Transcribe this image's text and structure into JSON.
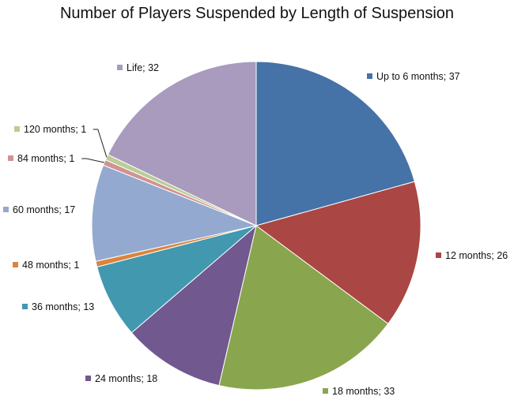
{
  "chart_data": {
    "type": "pie",
    "title": "Number of Players Suspended by Length of Suspension",
    "slices": [
      {
        "label": "Up to 6 months",
        "value": 37,
        "color": "#4572A7"
      },
      {
        "label": "12 months",
        "value": 26,
        "color": "#AA4643"
      },
      {
        "label": "18 months",
        "value": 33,
        "color": "#89A54E"
      },
      {
        "label": "24 months",
        "value": 18,
        "color": "#71588F"
      },
      {
        "label": "36 months",
        "value": 13,
        "color": "#4198AF"
      },
      {
        "label": "48 months",
        "value": 1,
        "color": "#DB843D"
      },
      {
        "label": "60 months",
        "value": 17,
        "color": "#93A9CF"
      },
      {
        "label": "84 months",
        "value": 1,
        "color": "#D19392"
      },
      {
        "label": "120 months",
        "value": 1,
        "color": "#B9CD96"
      },
      {
        "label": "Life",
        "value": 32,
        "color": "#A99BBD"
      }
    ],
    "data_labels": [
      "Up to 6 months; 37",
      "12 months; 26",
      "18 months; 33",
      "24 months; 18",
      "36 months; 13",
      "48 months; 1",
      "60 months; 17",
      "84 months; 1",
      "120 months; 1",
      "Life; 32"
    ],
    "label_separator": "; ",
    "start_angle": "12 o'clock",
    "direction": "clockwise"
  }
}
